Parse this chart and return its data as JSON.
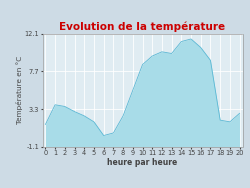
{
  "title": "Evolution de la température",
  "xlabel": "heure par heure",
  "ylabel": "Température en °C",
  "ylim": [
    -1.1,
    12.1
  ],
  "yticks": [
    -1.1,
    3.3,
    7.7,
    12.1
  ],
  "ytick_labels": [
    "-1.1",
    "3.3",
    "7.7",
    "12.1"
  ],
  "hours": [
    0,
    1,
    2,
    3,
    4,
    5,
    6,
    7,
    8,
    9,
    10,
    11,
    12,
    13,
    14,
    15,
    16,
    17,
    18,
    19,
    20
  ],
  "temps": [
    1.5,
    3.8,
    3.6,
    3.0,
    2.5,
    1.8,
    0.2,
    0.5,
    2.5,
    5.5,
    8.5,
    9.5,
    10.0,
    9.8,
    11.2,
    11.5,
    10.5,
    9.0,
    2.0,
    1.8,
    2.8
  ],
  "fill_color": "#a8dce8",
  "line_color": "#5bb8d4",
  "title_color": "#cc0000",
  "bg_color": "#cddbe5",
  "plot_bg_color": "#e0ecf2",
  "grid_color": "#ffffff",
  "tick_color": "#444444",
  "title_fontsize": 7.5,
  "label_fontsize": 5.5,
  "tick_fontsize": 4.8,
  "ylabel_fontsize": 5.2
}
